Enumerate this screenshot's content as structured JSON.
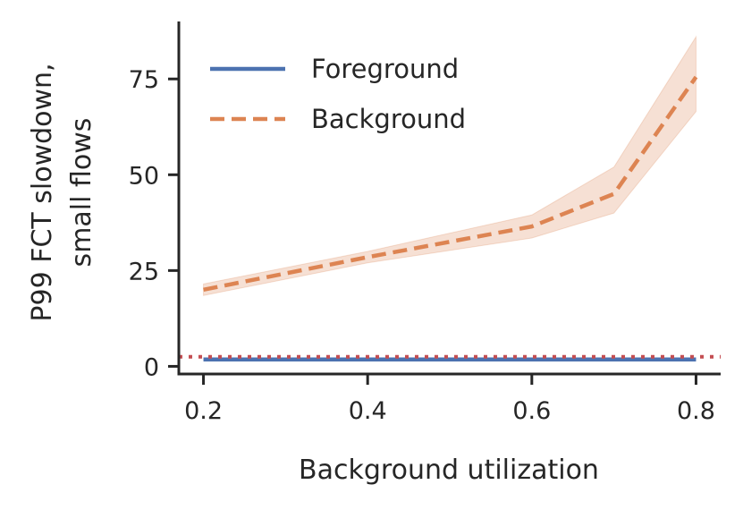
{
  "chart_data": {
    "type": "line",
    "xlabel": "Background utilization",
    "ylabel_lines": [
      "P99 FCT slowdown,",
      "small flows"
    ],
    "xlim": [
      0.17,
      0.83
    ],
    "ylim": [
      -2,
      90
    ],
    "x_ticks": [
      0.2,
      0.4,
      0.6,
      0.8
    ],
    "x_tick_labels": [
      "0.2",
      "0.4",
      "0.6",
      "0.8"
    ],
    "y_ticks": [
      0,
      25,
      50,
      75
    ],
    "y_tick_labels": [
      "0",
      "25",
      "50",
      "75"
    ],
    "grid": false,
    "legend_position": "top-left",
    "series": [
      {
        "name": "Foreground",
        "style": "solid",
        "color": "#4c72b0",
        "x": [
          0.2,
          0.4,
          0.6,
          0.7,
          0.8
        ],
        "y": [
          1.8,
          1.8,
          1.8,
          1.8,
          1.8
        ]
      },
      {
        "name": "Background",
        "style": "dashed",
        "color": "#dd8452",
        "x": [
          0.2,
          0.4,
          0.6,
          0.7,
          0.8
        ],
        "y": [
          20.0,
          28.5,
          36.5,
          45.0,
          75.5
        ],
        "y_lower": [
          18.5,
          27.0,
          33.5,
          40.0,
          66.5
        ],
        "y_upper": [
          21.5,
          30.0,
          39.5,
          52.0,
          86.0
        ]
      }
    ],
    "reference_line": {
      "y": 2.5,
      "style": "dotted",
      "color": "#c44e52"
    }
  }
}
